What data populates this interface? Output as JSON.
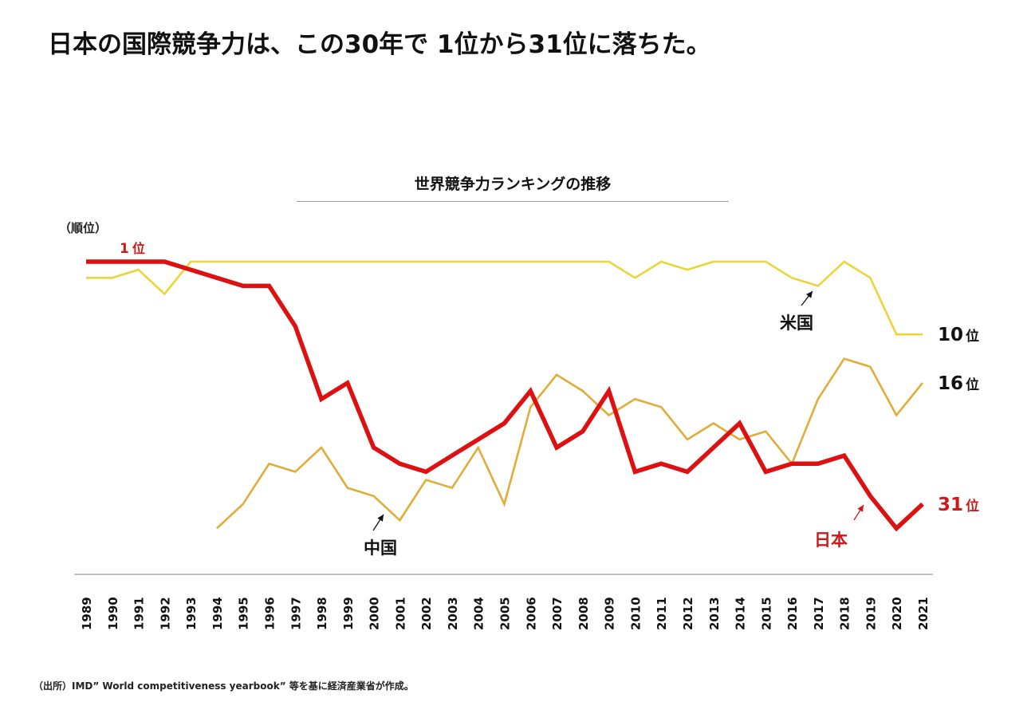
{
  "headline": "日本の国際競争力は、この30年で 1位から31位に落ちた。",
  "source": "（出所）IMD” World competitiveness yearbook” 等を基に経済産業省が作成。",
  "chart_data": {
    "type": "line",
    "title": "世界競争力ランキングの推移",
    "ylabel": "（順位）",
    "xlabel": "",
    "y_inverted": true,
    "ylim": [
      1,
      35
    ],
    "grid": false,
    "legend": "none (direct labels)",
    "x": [
      "1989",
      "1990",
      "1991",
      "1992",
      "1993",
      "1994",
      "1995",
      "1996",
      "1997",
      "1998",
      "1999",
      "2000",
      "2001",
      "2002",
      "2003",
      "2004",
      "2005",
      "2006",
      "2007",
      "2008",
      "2009",
      "2010",
      "2011",
      "2012",
      "2013",
      "2014",
      "2015",
      "2016",
      "2017",
      "2018",
      "2019",
      "2020",
      "2021"
    ],
    "series": [
      {
        "name": "米国",
        "color": "#ecd43a",
        "values": [
          3,
          3,
          2,
          5,
          1,
          1,
          1,
          1,
          1,
          1,
          1,
          1,
          1,
          1,
          1,
          1,
          1,
          1,
          1,
          1,
          1,
          3,
          1,
          2,
          1,
          1,
          1,
          3,
          4,
          1,
          3,
          10,
          10
        ],
        "end_label": "10",
        "end_unit": "位",
        "end_label_color": "#111111"
      },
      {
        "name": "中国",
        "color": "#e0ad3a",
        "values": [
          null,
          null,
          null,
          null,
          null,
          34,
          31,
          26,
          27,
          24,
          29,
          30,
          33,
          28,
          29,
          24,
          31,
          19,
          15,
          17,
          20,
          18,
          19,
          23,
          21,
          23,
          22,
          26,
          18,
          13,
          14,
          20,
          16
        ],
        "end_label": "16",
        "end_unit": "位",
        "end_label_color": "#111111"
      },
      {
        "name": "日本",
        "color": "#dd1111",
        "values": [
          1,
          1,
          1,
          1,
          2,
          3,
          4,
          4,
          9,
          18,
          16,
          24,
          26,
          27,
          25,
          23,
          21,
          17,
          24,
          22,
          17,
          27,
          26,
          27,
          24,
          21,
          27,
          26,
          26,
          25,
          30,
          34,
          31
        ],
        "end_label": "31",
        "end_unit": "位",
        "end_label_color": "#cc1a1a",
        "start_label": "1",
        "start_unit": "位"
      }
    ],
    "annotations": [
      {
        "text": "米国",
        "series": "米国",
        "year": "2017",
        "color": "#111111"
      },
      {
        "text": "中国",
        "series": "中国",
        "year": "2001",
        "color": "#111111"
      },
      {
        "text": "日本",
        "series": "日本",
        "year": "2019",
        "color": "#cc1a1a"
      }
    ]
  }
}
